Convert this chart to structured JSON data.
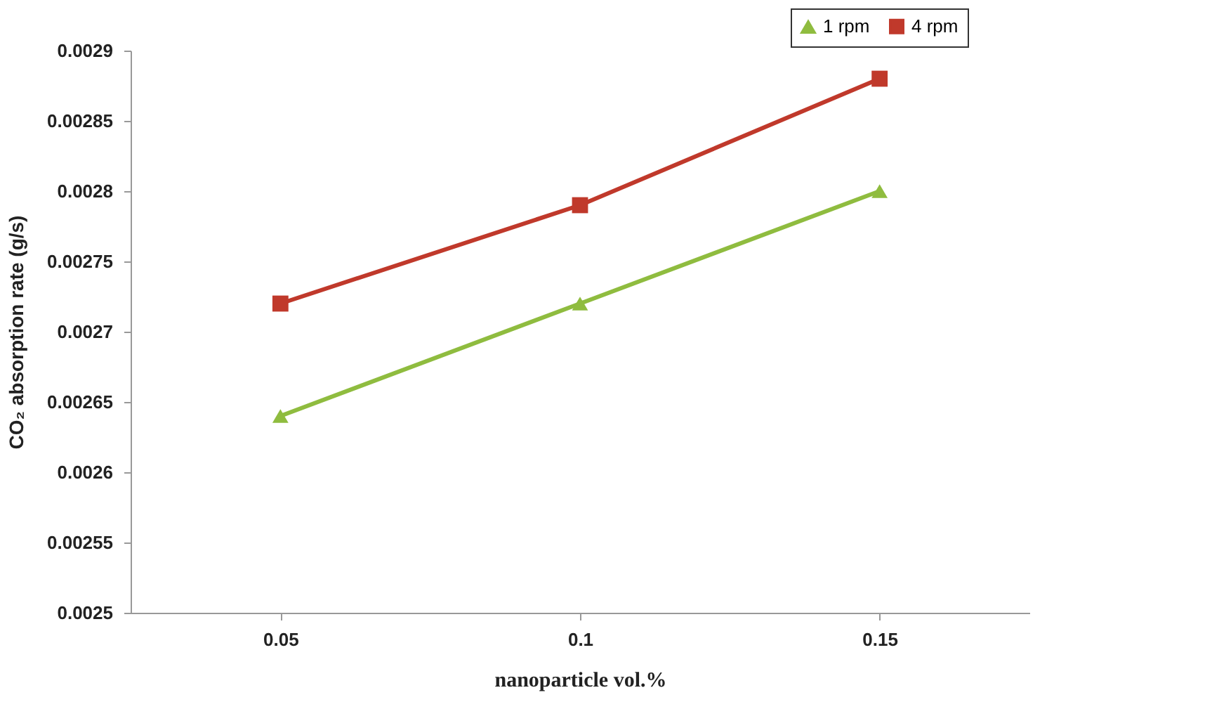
{
  "chart_data": {
    "type": "line",
    "xlabel": "nanoparticle vol.%",
    "ylabel": "CO₂ absorption rate (g/s)",
    "categories": [
      "0.05",
      "0.1",
      "0.15"
    ],
    "series": [
      {
        "name": "1 rpm",
        "color": "#8fbc3f",
        "marker": "triangle",
        "values": [
          0.00264,
          0.00272,
          0.0028
        ]
      },
      {
        "name": "4 rpm",
        "color": "#c0392b",
        "marker": "square",
        "values": [
          0.00272,
          0.00279,
          0.00288
        ]
      }
    ],
    "ylim": [
      0.0025,
      0.0029
    ],
    "yticks": [
      0.0025,
      0.00255,
      0.0026,
      0.00265,
      0.0027,
      0.00275,
      0.0028,
      0.00285,
      0.0029
    ],
    "grid": false,
    "legend": "top right",
    "line_style": "solid"
  }
}
